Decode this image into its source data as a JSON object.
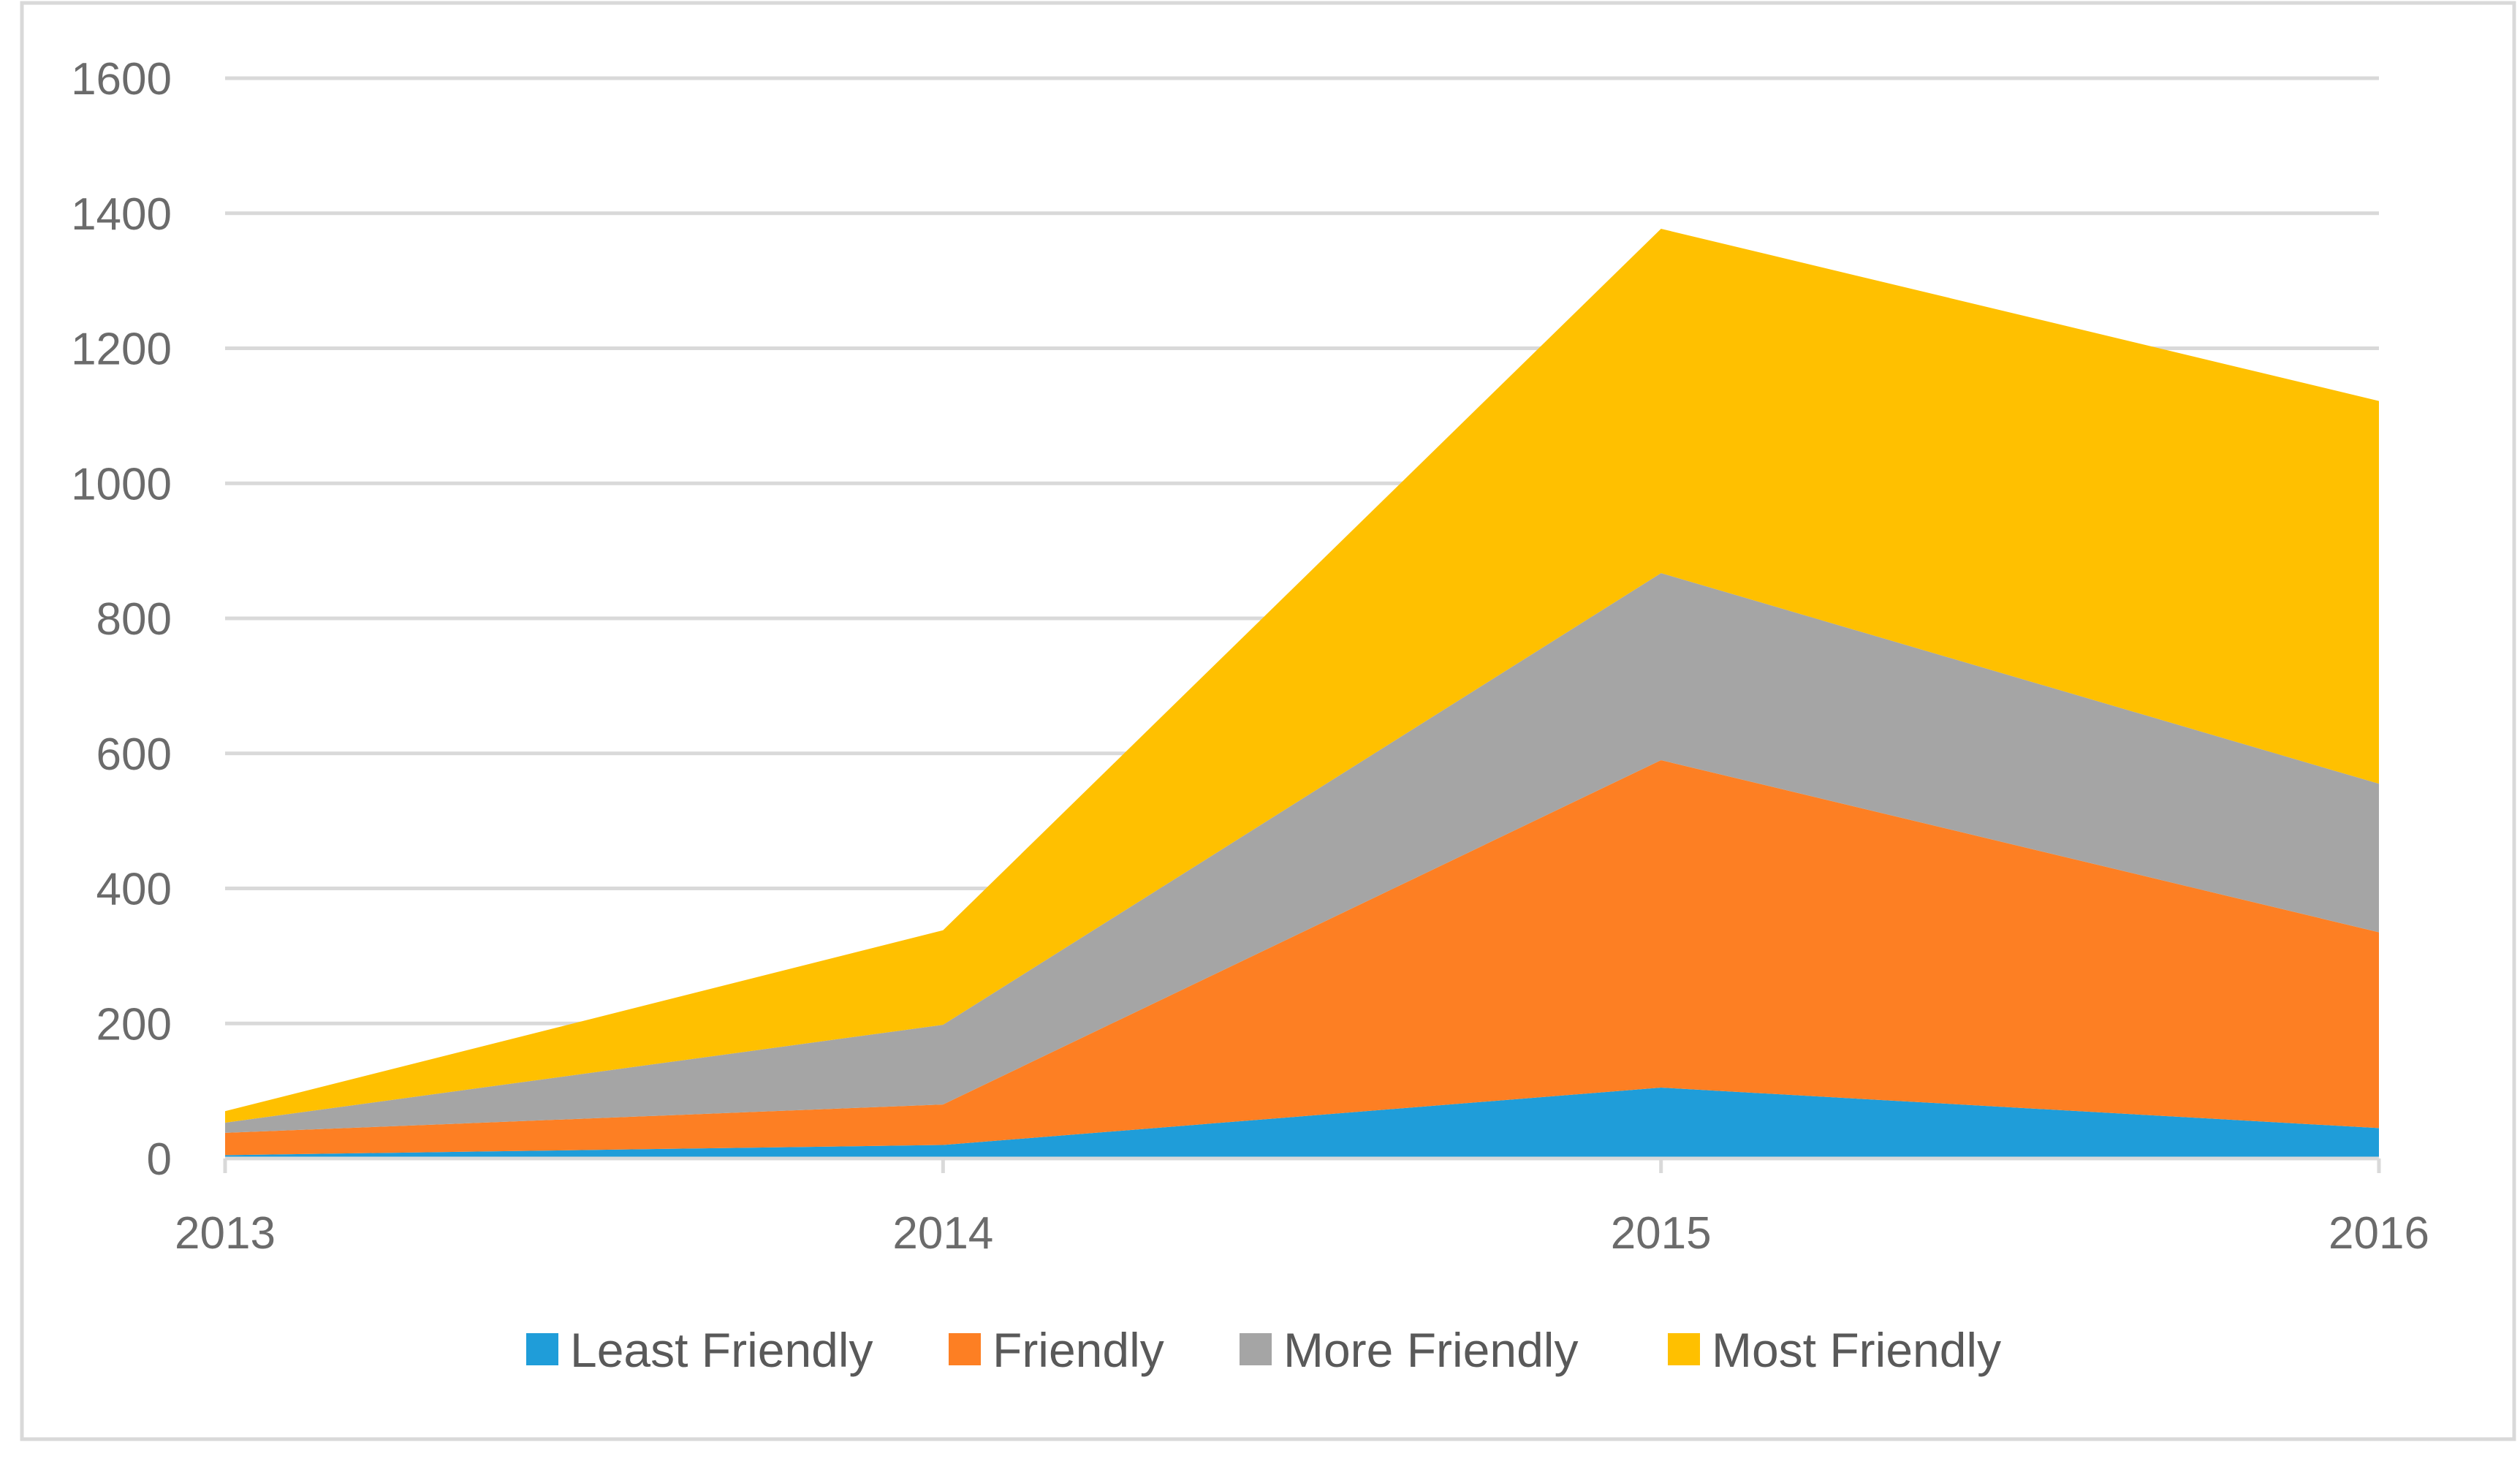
{
  "chart_data": {
    "type": "area",
    "stacked": true,
    "title": "",
    "xlabel": "",
    "ylabel": "",
    "categories": [
      "2013",
      "2014",
      "2015",
      "2016"
    ],
    "ylim": [
      0,
      1600
    ],
    "yticks": [
      0,
      200,
      400,
      600,
      800,
      1000,
      1200,
      1400,
      1600
    ],
    "ytick_labels": [
      "0",
      "200",
      "400",
      "600",
      "800",
      "1000",
      "1200",
      "1400",
      "1600"
    ],
    "grid": true,
    "legend_position": "bottom",
    "series": [
      {
        "name": "Least Friendly",
        "color": "#1f9dd9",
        "values": [
          5,
          20,
          105,
          45
        ]
      },
      {
        "name": "Friendly",
        "color": "#fd7f23",
        "values": [
          33,
          60,
          485,
          290
        ]
      },
      {
        "name": "More Friendly",
        "color": "#a5a5a5",
        "values": [
          15,
          118,
          277,
          220
        ]
      },
      {
        "name": "Most Friendly",
        "color": "#ffc000",
        "values": [
          17,
          140,
          510,
          567
        ]
      }
    ]
  }
}
